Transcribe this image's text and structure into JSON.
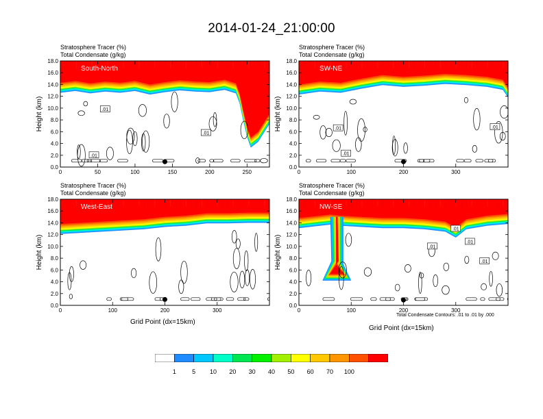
{
  "title": "2014-01-24_21:00:00",
  "colors": {
    "scale": [
      "#ffffff",
      "#1e8cff",
      "#00c8ff",
      "#00ffc8",
      "#00e650",
      "#00f000",
      "#a0f000",
      "#ffff00",
      "#ffc800",
      "#ff9600",
      "#ff5000",
      "#ff0000"
    ],
    "contour": "#000000",
    "marker": "#000000"
  },
  "colorbar": {
    "labels": [
      "1",
      "5",
      "10",
      "20",
      "30",
      "40",
      "50",
      "60",
      "70",
      "100"
    ]
  },
  "xlabel": "Grid Point (dx=15km)",
  "contour_note": "Total Condensate Contours: .01 to .01 by .000",
  "chart_data": [
    {
      "type": "heatmap",
      "panel": "south-north",
      "subtitle1": "Stratosphere Tracer   (%)",
      "subtitle2": "Total Condensate   (g/kg)",
      "region_label": "South-North",
      "ylabel": "Height (km)",
      "xlabel": "",
      "xlim": [
        0,
        280
      ],
      "ylim": [
        0,
        18
      ],
      "xticks": [
        0,
        50,
        100,
        150,
        200,
        250
      ],
      "yticks": [
        "0.0",
        "2.0",
        "4.0",
        "6.0",
        "8.0",
        "10.0",
        "12.0",
        "14.0",
        "16.0",
        "18.0"
      ],
      "tropopause_km": [
        [
          0,
          14.3
        ],
        [
          20,
          14.6
        ],
        [
          40,
          14.2
        ],
        [
          60,
          14.5
        ],
        [
          80,
          14.3
        ],
        [
          100,
          14.6
        ],
        [
          120,
          14.0
        ],
        [
          140,
          14.4
        ],
        [
          160,
          14.7
        ],
        [
          180,
          14.5
        ],
        [
          200,
          14.4
        ],
        [
          220,
          14.8
        ],
        [
          235,
          14.2
        ],
        [
          240,
          12.5
        ],
        [
          245,
          9.5
        ],
        [
          250,
          6.8
        ],
        [
          255,
          5.0
        ],
        [
          265,
          6.0
        ],
        [
          275,
          8.0
        ],
        [
          280,
          9.0
        ]
      ],
      "contour_labels": [
        {
          "x": 45,
          "y": 2.0,
          "text": ".01"
        },
        {
          "x": 60,
          "y": 9.8,
          "text": ".01"
        },
        {
          "x": 195,
          "y": 5.8,
          "text": ".01"
        }
      ],
      "marker": {
        "x": 140,
        "y": 0.9
      }
    },
    {
      "type": "heatmap",
      "panel": "sw-ne",
      "subtitle1": "Stratosphere Tracer   (%)",
      "subtitle2": "Total Condensate   (g/kg)",
      "region_label": "SW-NE",
      "ylabel": "Height (km)",
      "xlabel": "",
      "xlim": [
        0,
        400
      ],
      "ylim": [
        0,
        18
      ],
      "xticks": [
        0,
        100,
        200,
        300
      ],
      "yticks": [
        "0.0",
        "2.0",
        "4.0",
        "6.0",
        "8.0",
        "10.0",
        "12.0",
        "14.0",
        "16.0",
        "18.0"
      ],
      "tropopause_km": [
        [
          0,
          14.0
        ],
        [
          40,
          14.5
        ],
        [
          80,
          14.3
        ],
        [
          120,
          15.0
        ],
        [
          160,
          15.6
        ],
        [
          200,
          15.3
        ],
        [
          240,
          15.5
        ],
        [
          280,
          15.8
        ],
        [
          320,
          15.6
        ],
        [
          360,
          15.3
        ],
        [
          390,
          14.8
        ],
        [
          400,
          13.5
        ]
      ],
      "contour_labels": [
        {
          "x": 75,
          "y": 6.6,
          "text": ".01"
        },
        {
          "x": 90,
          "y": 2.3,
          "text": ".01"
        },
        {
          "x": 375,
          "y": 6.8,
          "text": ".01"
        }
      ],
      "marker": {
        "x": 200,
        "y": 0.9
      }
    },
    {
      "type": "heatmap",
      "panel": "west-east",
      "subtitle1": "Stratosphere Tracer   (%)",
      "subtitle2": "Total Condensate   (g/kg)",
      "region_label": "West-East",
      "ylabel": "Height (km)",
      "xlabel": "Grid Point (dx=15km)",
      "xlim": [
        0,
        400
      ],
      "ylim": [
        0,
        18
      ],
      "xticks": [
        0,
        100,
        200,
        300
      ],
      "yticks": [
        "0.0",
        "2.0",
        "4.0",
        "6.0",
        "8.0",
        "10.0",
        "12.0",
        "14.0",
        "16.0",
        "18.0"
      ],
      "tropopause_km": [
        [
          0,
          13.8
        ],
        [
          40,
          14.0
        ],
        [
          80,
          14.2
        ],
        [
          120,
          14.4
        ],
        [
          160,
          14.6
        ],
        [
          200,
          15.0
        ],
        [
          240,
          15.2
        ],
        [
          280,
          15.6
        ],
        [
          320,
          15.6
        ],
        [
          360,
          15.7
        ],
        [
          400,
          15.7
        ]
      ],
      "contour_labels": [],
      "marker": {
        "x": 200,
        "y": 1.0
      }
    },
    {
      "type": "heatmap",
      "panel": "nw-se",
      "subtitle1": "Stratosphere Tracer   (%)",
      "subtitle2": "Total Condensate   (g/kg)",
      "region_label": "NW-SE",
      "ylabel": "Height (km)",
      "xlabel": "Grid Point (dx=15km)",
      "xlim": [
        0,
        400
      ],
      "ylim": [
        0,
        18
      ],
      "xticks": [
        0,
        100,
        200,
        300
      ],
      "yticks": [
        "0.0",
        "2.0",
        "4.0",
        "6.0",
        "8.0",
        "10.0",
        "12.0",
        "14.0",
        "16.0",
        "18.0"
      ],
      "tropopause_km": [
        [
          0,
          14.8
        ],
        [
          40,
          15.2
        ],
        [
          60,
          15.4
        ],
        [
          80,
          15.2
        ],
        [
          120,
          15.0
        ],
        [
          160,
          14.8
        ],
        [
          200,
          14.8
        ],
        [
          240,
          14.6
        ],
        [
          280,
          14.2
        ],
        [
          300,
          13.2
        ],
        [
          320,
          14.6
        ],
        [
          360,
          15.2
        ],
        [
          400,
          15.5
        ]
      ],
      "fold": {
        "x_top": [
          60,
          85
        ],
        "x_bottom": [
          45,
          100
        ],
        "bottom_km": 4.2
      },
      "contour_labels": [
        {
          "x": 255,
          "y": 10.0,
          "text": ".01"
        },
        {
          "x": 300,
          "y": 13.0,
          "text": ".01"
        },
        {
          "x": 327,
          "y": 10.8,
          "text": ".01"
        },
        {
          "x": 355,
          "y": 7.5,
          "text": ".01"
        }
      ],
      "marker": {
        "x": 200,
        "y": 0.9
      }
    }
  ]
}
